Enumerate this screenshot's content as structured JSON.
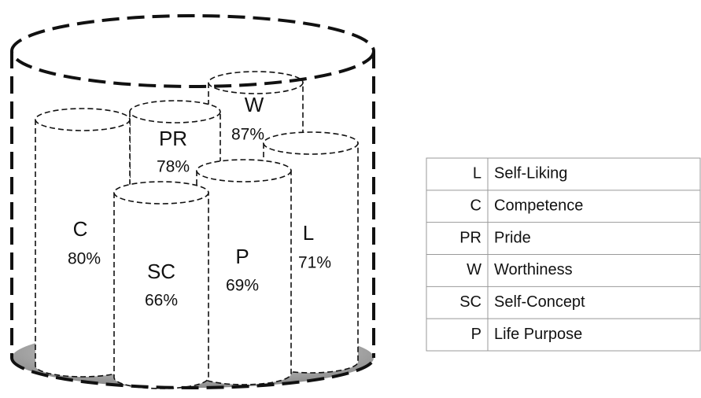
{
  "cylinders": [
    {
      "label": "W",
      "value": "87%"
    },
    {
      "label": "PR",
      "value": "78%"
    },
    {
      "label": "C",
      "value": "80%"
    },
    {
      "label": "L",
      "value": "71%"
    },
    {
      "label": "P",
      "value": "69%"
    },
    {
      "label": "SC",
      "value": "66%"
    }
  ],
  "legend": {
    "rows": [
      [
        "L",
        "Self-Liking"
      ],
      [
        "C",
        "Competence"
      ],
      [
        "PR",
        "Pride"
      ],
      [
        "W",
        "Worthiness"
      ],
      [
        "SC",
        "Self-Concept"
      ],
      [
        "P",
        "Life Purpose"
      ]
    ]
  }
}
